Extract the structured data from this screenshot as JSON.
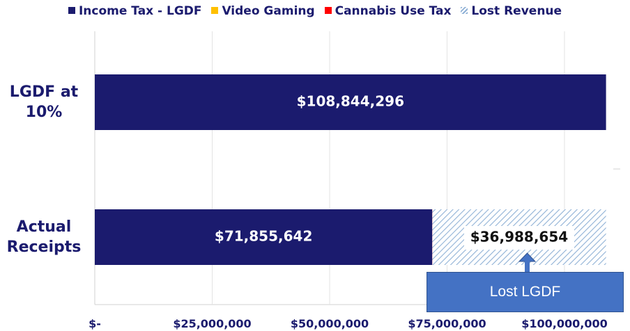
{
  "legend": [
    {
      "label": "Income Tax -  LGDF",
      "color": "#1b1b6e"
    },
    {
      "label": "Video Gaming",
      "color": "#ffc000"
    },
    {
      "label": "Cannabis Use Tax",
      "color": "#ff0000"
    },
    {
      "label": "Lost Revenue",
      "color": "hatched"
    }
  ],
  "categories": [
    "LGDF at 10%",
    "Actual Receipts"
  ],
  "category_lines": [
    [
      "LGDF at",
      "10%"
    ],
    [
      "Actual",
      "Receipts"
    ]
  ],
  "x_ticks": [
    "$-",
    "$25,000,000",
    "$50,000,000",
    "$75,000,000",
    "$100,000,000"
  ],
  "bar_labels": {
    "lgdf_10": "$108,844,296",
    "actual_income": "$71,855,642",
    "lost_revenue": "$36,988,654"
  },
  "callout": {
    "text": "Lost LGDF"
  },
  "colors": {
    "primary": "#1b1b6e",
    "hatch": "#8fb1d6",
    "callout_bg": "#4472c4",
    "cannabis": "#ff0000"
  },
  "chart_data": {
    "type": "bar",
    "orientation": "horizontal",
    "stacked": true,
    "categories": [
      "LGDF at 10%",
      "Actual Receipts"
    ],
    "series": [
      {
        "name": "Income Tax -  LGDF",
        "values": [
          108844296,
          71855642
        ]
      },
      {
        "name": "Video Gaming",
        "values": [
          0,
          0
        ]
      },
      {
        "name": "Cannabis Use Tax",
        "values": [
          0,
          300000
        ]
      },
      {
        "name": "Lost Revenue",
        "values": [
          0,
          36988654
        ]
      }
    ],
    "xlim": [
      0,
      110000000
    ],
    "xticks": [
      0,
      25000000,
      50000000,
      75000000,
      100000000
    ],
    "legend_position": "top",
    "grid": true
  }
}
